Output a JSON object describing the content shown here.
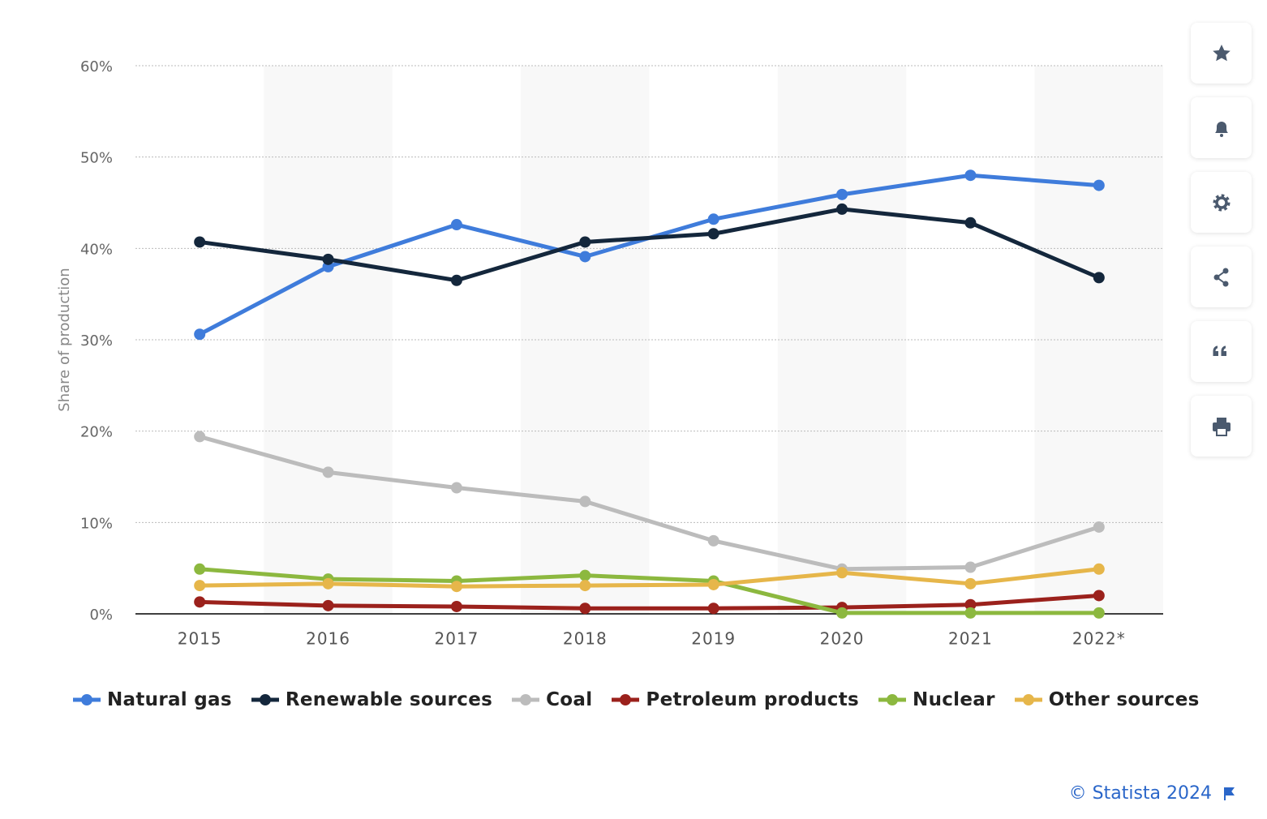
{
  "chart_data": {
    "type": "line",
    "y_label": "Share of production",
    "categories": [
      "2015",
      "2016",
      "2017",
      "2018",
      "2019",
      "2020",
      "2021",
      "2022*"
    ],
    "series": [
      {
        "name": "Natural gas",
        "color": "#3f7cdb",
        "values": [
          30.6,
          38.0,
          42.6,
          39.1,
          43.2,
          45.9,
          48.0,
          46.9
        ]
      },
      {
        "name": "Renewable sources",
        "color": "#14273c",
        "values": [
          40.7,
          38.8,
          36.5,
          40.7,
          41.6,
          44.3,
          42.8,
          36.8
        ]
      },
      {
        "name": "Coal",
        "color": "#bcbcbc",
        "values": [
          19.4,
          15.5,
          13.8,
          12.3,
          8.0,
          4.9,
          5.1,
          9.5
        ]
      },
      {
        "name": "Petroleum products",
        "color": "#9b211c",
        "values": [
          1.3,
          0.9,
          0.8,
          0.6,
          0.6,
          0.7,
          1.0,
          2.0
        ]
      },
      {
        "name": "Nuclear",
        "color": "#8cb83f",
        "values": [
          4.9,
          3.8,
          3.6,
          4.2,
          3.6,
          0.1,
          0.1,
          0.1
        ]
      },
      {
        "name": "Other sources",
        "color": "#e6b64a",
        "values": [
          3.1,
          3.3,
          3.0,
          3.1,
          3.2,
          4.5,
          3.3,
          4.9
        ]
      }
    ],
    "ylim": [
      0,
      60
    ],
    "yticks": [
      {
        "value": 0,
        "label": "0%"
      },
      {
        "value": 10,
        "label": "10%"
      },
      {
        "value": 20,
        "label": "20%"
      },
      {
        "value": 30,
        "label": "30%"
      },
      {
        "value": 40,
        "label": "40%"
      },
      {
        "value": 50,
        "label": "50%"
      },
      {
        "value": 60,
        "label": "60%"
      }
    ],
    "grid": true,
    "legend": "bottom",
    "credit": "© Statista 2024"
  }
}
